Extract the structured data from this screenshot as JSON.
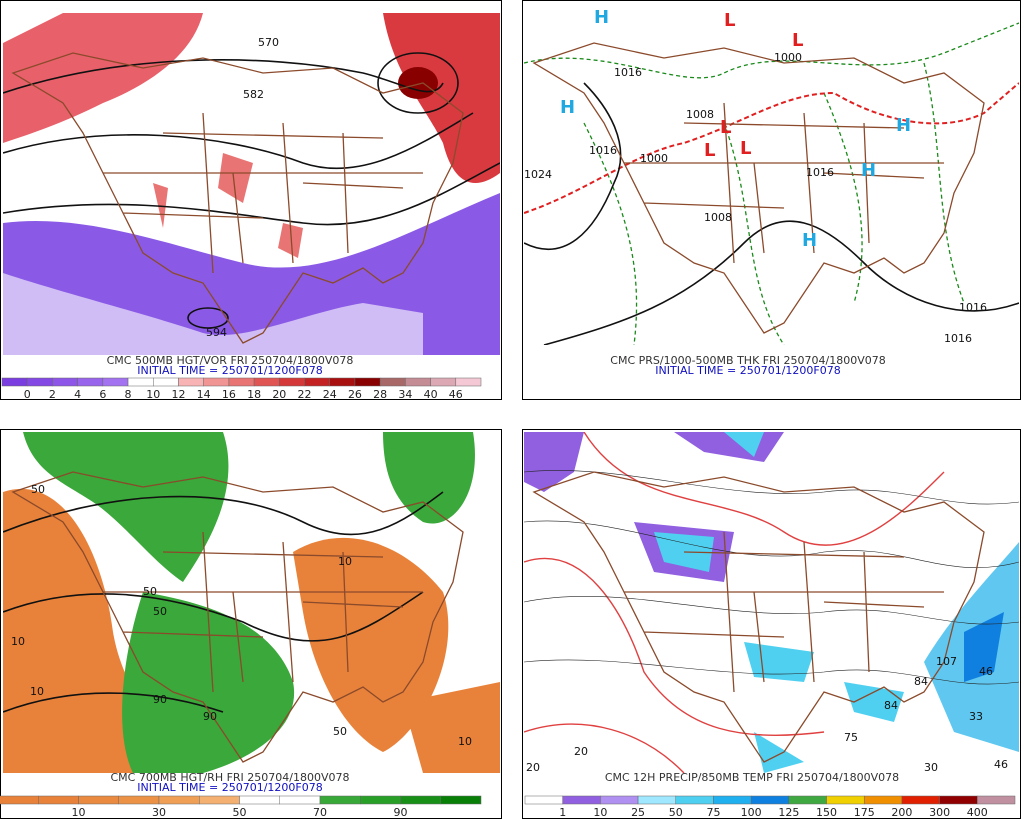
{
  "panels": [
    {
      "title": "CMC 500MB HGT/VOR FRI 250704/1800V078",
      "initial_time": "INITIAL TIME = 250701/1200F078",
      "colorbar": {
        "labels": [
          0,
          2,
          4,
          6,
          8,
          10,
          12,
          14,
          16,
          18,
          20,
          22,
          24,
          26,
          28,
          34,
          40,
          46
        ],
        "colors": [
          "#7a3ee0",
          "#8448e4",
          "#8e56e8",
          "#9864ec",
          "#a272f0",
          "#ffffff",
          "#ffffff",
          "#f8b4b4",
          "#f09494",
          "#e87474",
          "#e05454",
          "#d43838",
          "#c42222",
          "#a81010",
          "#880000",
          "#a86868",
          "#c48c94",
          "#dca8b4",
          "#f4c8d4"
        ]
      },
      "map_labels": [
        "570",
        "582",
        "594"
      ]
    },
    {
      "title": "CMC PRS/1000-500MB THK FRI 250704/1800V078",
      "initial_time": "INITIAL TIME = 250701/1200F078",
      "map_labels": [
        "1016",
        "1016",
        "1000",
        "1008",
        "1000",
        "1008",
        "1024",
        "1016",
        "1016",
        "1016",
        "H",
        "H",
        "H",
        "H",
        "H",
        "L",
        "L",
        "L",
        "L",
        "L"
      ]
    },
    {
      "title": "CMC 700MB HGT/RH FRI 250704/1800V078",
      "initial_time": "INITIAL TIME = 250701/1200F078",
      "colorbar": {
        "labels": [
          10,
          30,
          50,
          70,
          90
        ],
        "colors": [
          "#e8823a",
          "#e8823a",
          "#ea8a40",
          "#ec9246",
          "#f0a056",
          "#f4b070",
          "#ffffff",
          "#ffffff",
          "#38a838",
          "#28a028",
          "#189018",
          "#088008"
        ]
      },
      "map_labels": [
        "10",
        "10",
        "10",
        "50",
        "50",
        "50",
        "90",
        "90",
        "10",
        "50"
      ]
    },
    {
      "title": "CMC 12H PRECIP/850MB TEMP FRI 250704/1800V078",
      "colorbar": {
        "labels": [
          1,
          10,
          25,
          50,
          75,
          100,
          125,
          150,
          175,
          200,
          300,
          400
        ],
        "colors": [
          "#ffffff",
          "#9060e0",
          "#b090f0",
          "#a0e8ff",
          "#50d0f0",
          "#20b0f0",
          "#1080e0",
          "#40a840",
          "#f0d000",
          "#f09000",
          "#e02000",
          "#900000",
          "#c090a0"
        ]
      },
      "map_labels": [
        "107",
        "84",
        "84",
        "75",
        "46",
        "46",
        "33",
        "30",
        "20",
        "20"
      ]
    }
  ]
}
